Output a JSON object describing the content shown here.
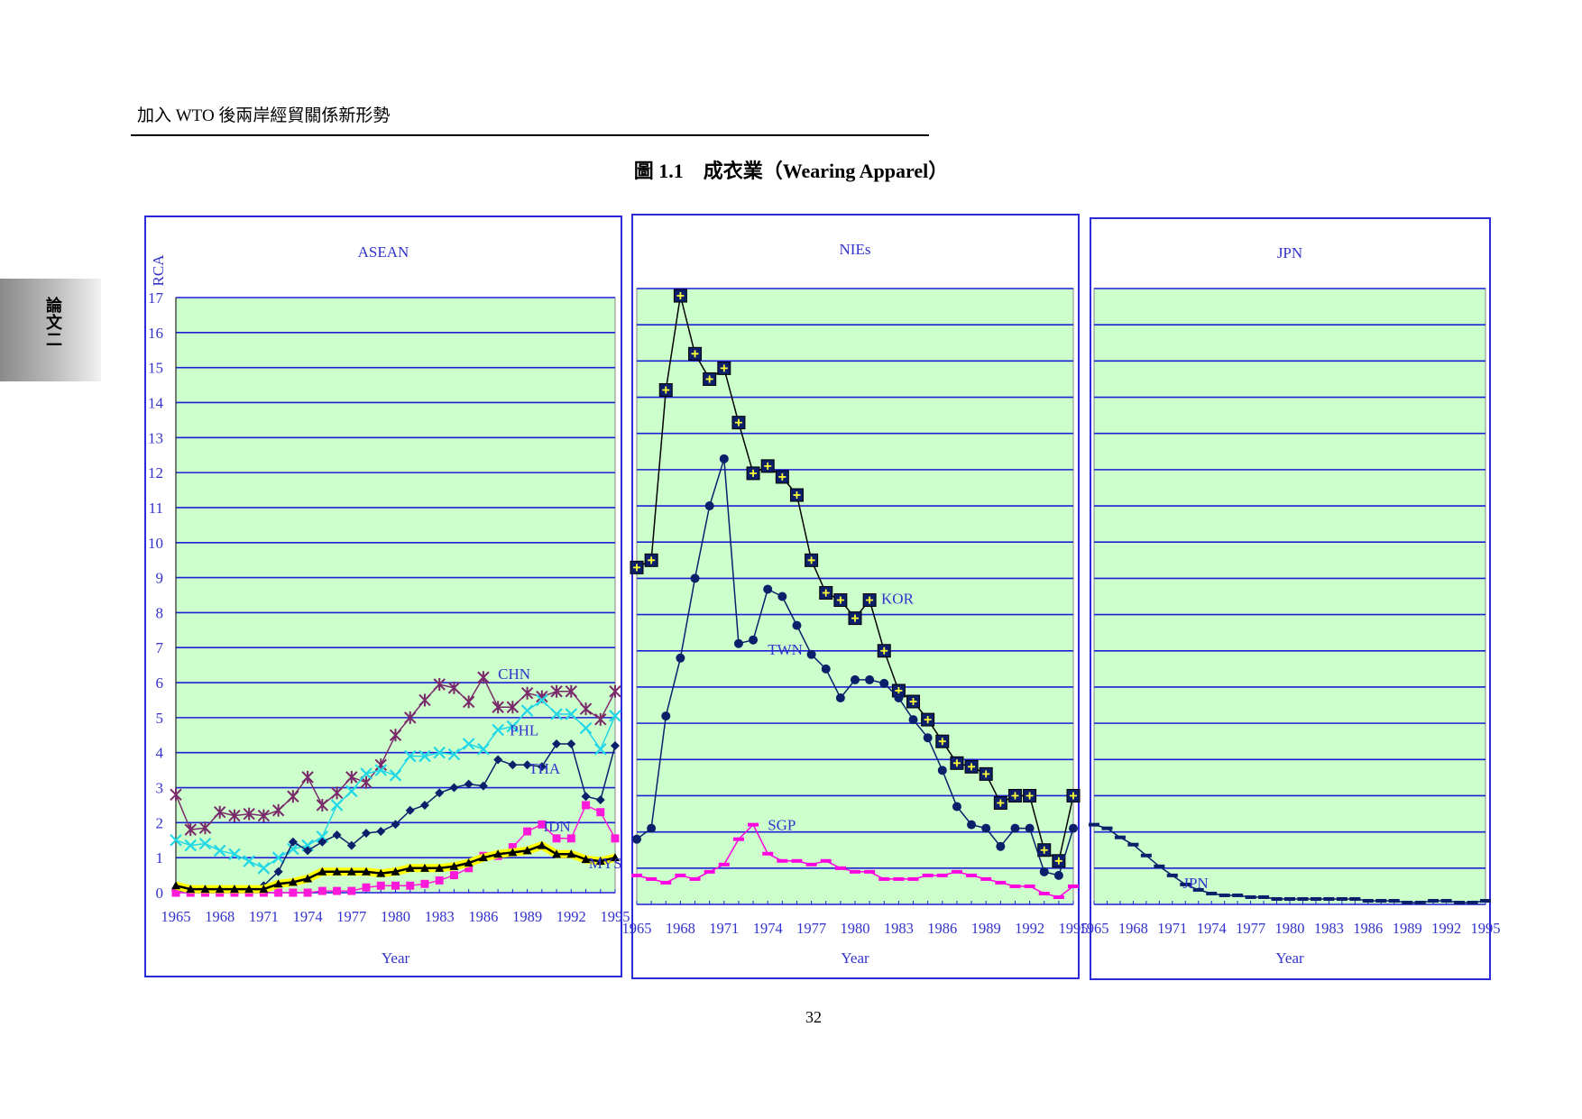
{
  "header": {
    "running_title": "加入 WTO 後兩岸經貿關係新形勢",
    "side_tab": "論文二"
  },
  "figure": {
    "title": "圖 1.1　成衣業（Wearing Apparel）"
  },
  "page_number": "32",
  "colors": {
    "frame": "#2b2bd9",
    "plot_bg": "#ccffcc",
    "grid": "#1f1fd6",
    "axis_text": "#3333cc"
  },
  "chart_data": [
    {
      "type": "line",
      "title": "ASEAN",
      "xlabel": "Year",
      "ylabel": "RCA",
      "xlim": [
        1965,
        1995
      ],
      "ylim": [
        0,
        17
      ],
      "xticks": [
        1965,
        1968,
        1971,
        1974,
        1977,
        1980,
        1983,
        1986,
        1989,
        1992,
        1995
      ],
      "yticks": [
        0,
        1,
        2,
        3,
        4,
        5,
        6,
        7,
        8,
        9,
        10,
        11,
        12,
        13,
        14,
        15,
        16,
        17
      ],
      "grid": true,
      "x": [
        1965,
        1966,
        1967,
        1968,
        1969,
        1970,
        1971,
        1972,
        1973,
        1974,
        1975,
        1976,
        1977,
        1978,
        1979,
        1980,
        1981,
        1982,
        1983,
        1984,
        1985,
        1986,
        1987,
        1988,
        1989,
        1990,
        1991,
        1992,
        1993,
        1994,
        1995
      ],
      "series": [
        {
          "name": "CHN",
          "color": "#7a2a6a",
          "marker": "asterisk",
          "values": [
            2.8,
            1.8,
            1.85,
            2.3,
            2.2,
            2.25,
            2.2,
            2.35,
            2.75,
            3.3,
            2.5,
            2.85,
            3.3,
            3.15,
            3.65,
            4.5,
            5.0,
            5.5,
            5.95,
            5.85,
            5.45,
            6.15,
            5.3,
            5.3,
            5.7,
            5.6,
            5.75,
            5.75,
            5.25,
            4.95,
            5.75
          ]
        },
        {
          "name": "PHL",
          "color": "#22d7e6",
          "marker": "x",
          "values": [
            1.5,
            1.35,
            1.4,
            1.2,
            1.1,
            0.9,
            0.7,
            1.0,
            1.25,
            1.35,
            1.6,
            2.5,
            2.9,
            3.4,
            3.5,
            3.35,
            3.9,
            3.9,
            4.0,
            3.95,
            4.25,
            4.1,
            4.65,
            4.75,
            5.2,
            5.5,
            5.1,
            5.1,
            4.7,
            4.1,
            5.05
          ]
        },
        {
          "name": "THA",
          "color": "#0b1f6b",
          "marker": "diamond",
          "values": [
            0.05,
            0.05,
            0.05,
            0.05,
            0.05,
            0.05,
            0.2,
            0.6,
            1.45,
            1.2,
            1.45,
            1.65,
            1.35,
            1.7,
            1.75,
            1.95,
            2.35,
            2.5,
            2.85,
            3.0,
            3.1,
            3.05,
            3.8,
            3.65,
            3.65,
            3.6,
            4.25,
            4.25,
            2.75,
            2.65,
            4.2
          ]
        },
        {
          "name": "IDN",
          "color": "#ff1ad9",
          "marker": "square",
          "values": [
            0.0,
            0.0,
            0.0,
            0.0,
            0.0,
            0.0,
            0.0,
            0.0,
            0.0,
            0.0,
            0.05,
            0.05,
            0.05,
            0.15,
            0.2,
            0.2,
            0.2,
            0.25,
            0.35,
            0.5,
            0.7,
            1.05,
            1.05,
            1.3,
            1.75,
            1.95,
            1.55,
            1.55,
            2.5,
            2.3,
            1.55
          ]
        },
        {
          "name": "MYS",
          "color": "#000000",
          "band_color": "#ffff00",
          "marker": "triangle",
          "values": [
            0.2,
            0.1,
            0.1,
            0.1,
            0.1,
            0.1,
            0.1,
            0.25,
            0.3,
            0.4,
            0.6,
            0.6,
            0.6,
            0.6,
            0.55,
            0.6,
            0.7,
            0.7,
            0.7,
            0.75,
            0.85,
            1.0,
            1.1,
            1.15,
            1.2,
            1.35,
            1.1,
            1.1,
            0.95,
            0.9,
            1.0
          ]
        }
      ]
    },
    {
      "type": "line",
      "title": "NIEs",
      "xlabel": "Year",
      "xlim": [
        1965,
        1995
      ],
      "ylim": [
        0,
        17
      ],
      "xticks": [
        1965,
        1968,
        1971,
        1974,
        1977,
        1980,
        1983,
        1986,
        1989,
        1992,
        1995
      ],
      "grid": true,
      "x": [
        1965,
        1966,
        1967,
        1968,
        1969,
        1970,
        1971,
        1972,
        1973,
        1974,
        1975,
        1976,
        1977,
        1978,
        1979,
        1980,
        1981,
        1982,
        1983,
        1984,
        1985,
        1986,
        1987,
        1988,
        1989,
        1990,
        1991,
        1992,
        1993,
        1994,
        1995
      ],
      "series": [
        {
          "name": "KOR",
          "color": "#000000",
          "marker": "boxed-plus",
          "values": [
            9.3,
            9.5,
            14.2,
            16.8,
            15.2,
            14.5,
            14.8,
            13.3,
            11.9,
            12.1,
            11.8,
            11.3,
            9.5,
            8.6,
            8.4,
            7.9,
            8.4,
            7.0,
            5.9,
            5.6,
            5.1,
            4.5,
            3.9,
            3.8,
            3.6,
            2.8,
            3.0,
            3.0,
            1.5,
            1.2,
            3.0
          ]
        },
        {
          "name": "TWN",
          "color": "#0b1f6b",
          "marker": "circle",
          "values": [
            1.8,
            2.1,
            5.2,
            6.8,
            9.0,
            11.0,
            12.3,
            7.2,
            7.3,
            8.7,
            8.5,
            7.7,
            6.9,
            6.5,
            5.7,
            6.2,
            6.2,
            6.1,
            5.7,
            5.1,
            4.6,
            3.7,
            2.7,
            2.2,
            2.1,
            1.6,
            2.1,
            2.1,
            0.9,
            0.8,
            2.1
          ]
        },
        {
          "name": "SGP",
          "color": "#ff00e0",
          "marker": "dash",
          "values": [
            0.8,
            0.7,
            0.6,
            0.8,
            0.7,
            0.9,
            1.1,
            1.8,
            2.2,
            1.4,
            1.2,
            1.2,
            1.1,
            1.2,
            1.0,
            0.9,
            0.9,
            0.7,
            0.7,
            0.7,
            0.8,
            0.8,
            0.9,
            0.8,
            0.7,
            0.6,
            0.5,
            0.5,
            0.3,
            0.2,
            0.5
          ]
        }
      ]
    },
    {
      "type": "line",
      "title": "JPN",
      "xlabel": "Year",
      "xlim": [
        1965,
        1995
      ],
      "ylim": [
        0,
        17
      ],
      "xticks": [
        1965,
        1968,
        1971,
        1974,
        1977,
        1980,
        1983,
        1986,
        1989,
        1992,
        1995
      ],
      "grid": true,
      "x": [
        1965,
        1966,
        1967,
        1968,
        1969,
        1970,
        1971,
        1972,
        1973,
        1974,
        1975,
        1976,
        1977,
        1978,
        1979,
        1980,
        1981,
        1982,
        1983,
        1984,
        1985,
        1986,
        1987,
        1988,
        1989,
        1990,
        1991,
        1992,
        1993,
        1994,
        1995
      ],
      "series": [
        {
          "name": "JPN",
          "color": "#0b1f6b",
          "marker": "dash",
          "values": [
            2.2,
            2.1,
            1.85,
            1.65,
            1.35,
            1.05,
            0.8,
            0.55,
            0.4,
            0.3,
            0.25,
            0.25,
            0.2,
            0.2,
            0.15,
            0.15,
            0.15,
            0.15,
            0.15,
            0.15,
            0.15,
            0.1,
            0.1,
            0.1,
            0.05,
            0.05,
            0.1,
            0.1,
            0.05,
            0.05,
            0.1
          ]
        }
      ]
    }
  ]
}
